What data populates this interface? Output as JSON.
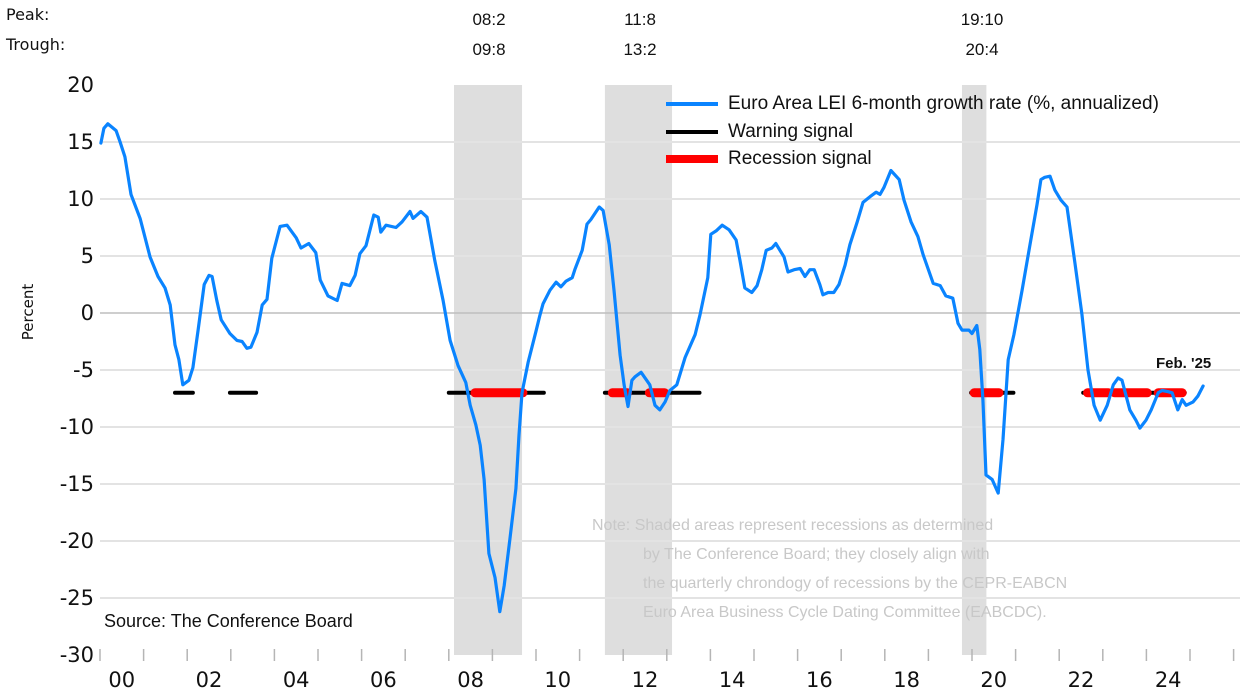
{
  "header": {
    "peak_label": "Peak:",
    "trough_label": "Trough:",
    "recession_dates": [
      {
        "peak": "08:2",
        "trough": "09:8"
      },
      {
        "peak": "11:8",
        "trough": "13:2"
      },
      {
        "peak": "19:10",
        "trough": "20:4"
      }
    ]
  },
  "colors": {
    "line": "#0a84ff",
    "warning": "#000000",
    "recession_signal": "#ff0000",
    "shade": "#dedede",
    "grid": "#e3e3e3",
    "zero": "#bdbdbd",
    "note": "#c8c8c8"
  },
  "chart_data": {
    "type": "line",
    "title": "",
    "xlabel": "",
    "ylabel": "Percent",
    "ylim": [
      -30,
      20
    ],
    "xlim": [
      2000,
      2025.3
    ],
    "yticks": [
      "20",
      "15",
      "10",
      "5",
      "0",
      "-5",
      "-10",
      "-15",
      "-20",
      "-25",
      "-30"
    ],
    "ytick_values": [
      20,
      15,
      10,
      5,
      0,
      -5,
      -10,
      -15,
      -20,
      -25,
      -30
    ],
    "xticks": [
      "00",
      "02",
      "04",
      "06",
      "08",
      "10",
      "12",
      "14",
      "16",
      "18",
      "20",
      "22",
      "24"
    ],
    "xtick_years": [
      2000.5,
      2002.5,
      2004.5,
      2006.5,
      2008.5,
      2010.5,
      2012.5,
      2014.5,
      2016.5,
      2018.5,
      2020.5,
      2022.5,
      2024.5
    ],
    "grid": true,
    "legend_position": "top-right",
    "legend": [
      {
        "name": "Euro Area LEI 6-month growth rate (%, annualized)",
        "kind": "line"
      },
      {
        "name": "Warning signal",
        "kind": "warning"
      },
      {
        "name": "Recession signal",
        "kind": "recession"
      }
    ],
    "recession_shading": [
      [
        2008.12,
        2009.68
      ],
      [
        2011.58,
        2013.12
      ],
      [
        2019.77,
        2020.33
      ]
    ],
    "signal_level": -7,
    "warning_signals": [
      [
        2001.72,
        2002.13
      ],
      [
        2002.98,
        2003.58
      ],
      [
        2008.0,
        2010.18
      ],
      [
        2011.58,
        2013.75
      ],
      [
        2019.98,
        2020.95
      ],
      [
        2022.55,
        2024.88
      ]
    ],
    "recession_signals": [
      [
        2008.6,
        2009.7
      ],
      [
        2011.75,
        2012.1
      ],
      [
        2012.6,
        2012.95
      ],
      [
        2020.05,
        2020.62
      ],
      [
        2022.65,
        2023.13
      ],
      [
        2023.27,
        2024.02
      ],
      [
        2024.27,
        2024.82
      ]
    ],
    "series": [
      {
        "name": "Euro Area LEI 6-month growth rate (%, annualized)",
        "points": [
          [
            2000.02,
            14.9
          ],
          [
            2000.09,
            16.2
          ],
          [
            2000.18,
            16.6
          ],
          [
            2000.37,
            16.0
          ],
          [
            2000.46,
            15.0
          ],
          [
            2000.57,
            13.7
          ],
          [
            2000.71,
            10.4
          ],
          [
            2000.92,
            8.3
          ],
          [
            2001.15,
            4.9
          ],
          [
            2001.33,
            3.2
          ],
          [
            2001.49,
            2.2
          ],
          [
            2001.61,
            0.7
          ],
          [
            2001.72,
            -2.8
          ],
          [
            2001.81,
            -4.1
          ],
          [
            2001.9,
            -6.3
          ],
          [
            2002.04,
            -5.9
          ],
          [
            2002.13,
            -4.8
          ],
          [
            2002.25,
            -1.5
          ],
          [
            2002.39,
            2.5
          ],
          [
            2002.5,
            3.3
          ],
          [
            2002.57,
            3.2
          ],
          [
            2002.68,
            1.1
          ],
          [
            2002.78,
            -0.6
          ],
          [
            2002.98,
            -1.8
          ],
          [
            2003.14,
            -2.4
          ],
          [
            2003.26,
            -2.5
          ],
          [
            2003.37,
            -3.1
          ],
          [
            2003.46,
            -3.0
          ],
          [
            2003.6,
            -1.7
          ],
          [
            2003.72,
            0.7
          ],
          [
            2003.83,
            1.2
          ],
          [
            2003.94,
            4.8
          ],
          [
            2004.13,
            7.6
          ],
          [
            2004.29,
            7.7
          ],
          [
            2004.5,
            6.6
          ],
          [
            2004.61,
            5.7
          ],
          [
            2004.79,
            6.1
          ],
          [
            2004.95,
            5.3
          ],
          [
            2005.05,
            2.9
          ],
          [
            2005.23,
            1.5
          ],
          [
            2005.44,
            1.1
          ],
          [
            2005.55,
            2.6
          ],
          [
            2005.73,
            2.4
          ],
          [
            2005.85,
            3.3
          ],
          [
            2005.96,
            5.2
          ],
          [
            2006.1,
            5.9
          ],
          [
            2006.28,
            8.6
          ],
          [
            2006.38,
            8.4
          ],
          [
            2006.44,
            7.1
          ],
          [
            2006.56,
            7.7
          ],
          [
            2006.79,
            7.5
          ],
          [
            2006.93,
            8.0
          ],
          [
            2007.11,
            8.9
          ],
          [
            2007.18,
            8.3
          ],
          [
            2007.36,
            8.9
          ],
          [
            2007.5,
            8.4
          ],
          [
            2007.68,
            4.6
          ],
          [
            2007.87,
            1.1
          ],
          [
            2008.03,
            -2.4
          ],
          [
            2008.21,
            -4.6
          ],
          [
            2008.39,
            -6.1
          ],
          [
            2008.49,
            -8.1
          ],
          [
            2008.62,
            -9.8
          ],
          [
            2008.72,
            -11.6
          ],
          [
            2008.81,
            -14.6
          ],
          [
            2008.92,
            -21.1
          ],
          [
            2009.06,
            -23.2
          ],
          [
            2009.17,
            -26.2
          ],
          [
            2009.27,
            -23.9
          ],
          [
            2009.4,
            -19.9
          ],
          [
            2009.54,
            -15.4
          ],
          [
            2009.61,
            -10.7
          ],
          [
            2009.68,
            -7.0
          ],
          [
            2009.82,
            -4.3
          ],
          [
            2010.0,
            -1.6
          ],
          [
            2010.09,
            -0.2
          ],
          [
            2010.16,
            0.8
          ],
          [
            2010.32,
            2.0
          ],
          [
            2010.46,
            2.7
          ],
          [
            2010.57,
            2.3
          ],
          [
            2010.69,
            2.8
          ],
          [
            2010.83,
            3.1
          ],
          [
            2010.89,
            3.8
          ],
          [
            2011.06,
            5.5
          ],
          [
            2011.17,
            7.8
          ],
          [
            2011.26,
            8.2
          ],
          [
            2011.45,
            9.3
          ],
          [
            2011.54,
            9.0
          ],
          [
            2011.68,
            6.0
          ],
          [
            2011.79,
            2.0
          ],
          [
            2011.93,
            -3.7
          ],
          [
            2012.02,
            -6.3
          ],
          [
            2012.11,
            -8.2
          ],
          [
            2012.2,
            -5.9
          ],
          [
            2012.27,
            -5.6
          ],
          [
            2012.41,
            -5.2
          ],
          [
            2012.61,
            -6.3
          ],
          [
            2012.73,
            -8.1
          ],
          [
            2012.84,
            -8.5
          ],
          [
            2012.96,
            -7.8
          ],
          [
            2013.07,
            -6.8
          ],
          [
            2013.23,
            -6.3
          ],
          [
            2013.42,
            -3.9
          ],
          [
            2013.65,
            -1.9
          ],
          [
            2013.76,
            -0.2
          ],
          [
            2013.94,
            3.1
          ],
          [
            2014.01,
            6.9
          ],
          [
            2014.13,
            7.2
          ],
          [
            2014.27,
            7.7
          ],
          [
            2014.43,
            7.3
          ],
          [
            2014.59,
            6.4
          ],
          [
            2014.68,
            4.6
          ],
          [
            2014.79,
            2.2
          ],
          [
            2014.95,
            1.8
          ],
          [
            2015.07,
            2.4
          ],
          [
            2015.18,
            3.8
          ],
          [
            2015.28,
            5.5
          ],
          [
            2015.41,
            5.7
          ],
          [
            2015.5,
            6.1
          ],
          [
            2015.69,
            4.9
          ],
          [
            2015.78,
            3.6
          ],
          [
            2015.92,
            3.8
          ],
          [
            2016.06,
            3.9
          ],
          [
            2016.17,
            3.2
          ],
          [
            2016.28,
            3.8
          ],
          [
            2016.38,
            3.8
          ],
          [
            2016.51,
            2.5
          ],
          [
            2016.58,
            1.6
          ],
          [
            2016.7,
            1.8
          ],
          [
            2016.83,
            1.8
          ],
          [
            2016.95,
            2.5
          ],
          [
            2017.09,
            4.2
          ],
          [
            2017.2,
            6.0
          ],
          [
            2017.36,
            7.9
          ],
          [
            2017.5,
            9.7
          ],
          [
            2017.66,
            10.2
          ],
          [
            2017.8,
            10.6
          ],
          [
            2017.89,
            10.4
          ],
          [
            2017.98,
            11.0
          ],
          [
            2018.14,
            12.5
          ],
          [
            2018.33,
            11.7
          ],
          [
            2018.44,
            9.9
          ],
          [
            2018.6,
            8.0
          ],
          [
            2018.76,
            6.7
          ],
          [
            2018.88,
            5.1
          ],
          [
            2019.11,
            2.6
          ],
          [
            2019.27,
            2.4
          ],
          [
            2019.4,
            1.5
          ],
          [
            2019.56,
            1.3
          ],
          [
            2019.68,
            -0.9
          ],
          [
            2019.77,
            -1.5
          ],
          [
            2019.93,
            -1.5
          ],
          [
            2020.0,
            -1.8
          ],
          [
            2020.11,
            -1.1
          ],
          [
            2020.18,
            -3.2
          ],
          [
            2020.25,
            -7.6
          ],
          [
            2020.32,
            -14.2
          ],
          [
            2020.46,
            -14.6
          ],
          [
            2020.6,
            -15.8
          ],
          [
            2020.71,
            -11.1
          ],
          [
            2020.83,
            -4.1
          ],
          [
            2020.96,
            -1.9
          ],
          [
            2021.15,
            2.0
          ],
          [
            2021.33,
            6.0
          ],
          [
            2021.49,
            9.5
          ],
          [
            2021.58,
            11.7
          ],
          [
            2021.67,
            11.9
          ],
          [
            2021.79,
            12.0
          ],
          [
            2021.9,
            10.8
          ],
          [
            2022.04,
            9.9
          ],
          [
            2022.18,
            9.3
          ],
          [
            2022.36,
            4.4
          ],
          [
            2022.52,
            -0.1
          ],
          [
            2022.66,
            -5.0
          ],
          [
            2022.8,
            -8.1
          ],
          [
            2022.94,
            -9.4
          ],
          [
            2023.1,
            -8.1
          ],
          [
            2023.24,
            -6.3
          ],
          [
            2023.35,
            -5.7
          ],
          [
            2023.44,
            -5.9
          ],
          [
            2023.62,
            -8.5
          ],
          [
            2023.76,
            -9.4
          ],
          [
            2023.85,
            -10.1
          ],
          [
            2023.99,
            -9.4
          ],
          [
            2024.11,
            -8.5
          ],
          [
            2024.27,
            -7.0
          ],
          [
            2024.36,
            -6.8
          ],
          [
            2024.5,
            -6.9
          ],
          [
            2024.59,
            -7.0
          ],
          [
            2024.72,
            -8.5
          ],
          [
            2024.82,
            -7.6
          ],
          [
            2024.91,
            -8.1
          ],
          [
            2025.07,
            -7.8
          ],
          [
            2025.18,
            -7.3
          ],
          [
            2025.3,
            -6.4
          ]
        ]
      }
    ],
    "annotations": [
      {
        "text": "Feb. '25"
      }
    ]
  },
  "source": "Source: The Conference Board",
  "note_lines": [
    "Note: Shaded areas represent recessions as determined",
    "by  The Conference Board; they closely align with",
    "the quarterly  chrondogy  of  recessions by  the  CEPR-EABCN",
    "Euro Area Business Cycle Dating Committee (EABCDC)."
  ]
}
